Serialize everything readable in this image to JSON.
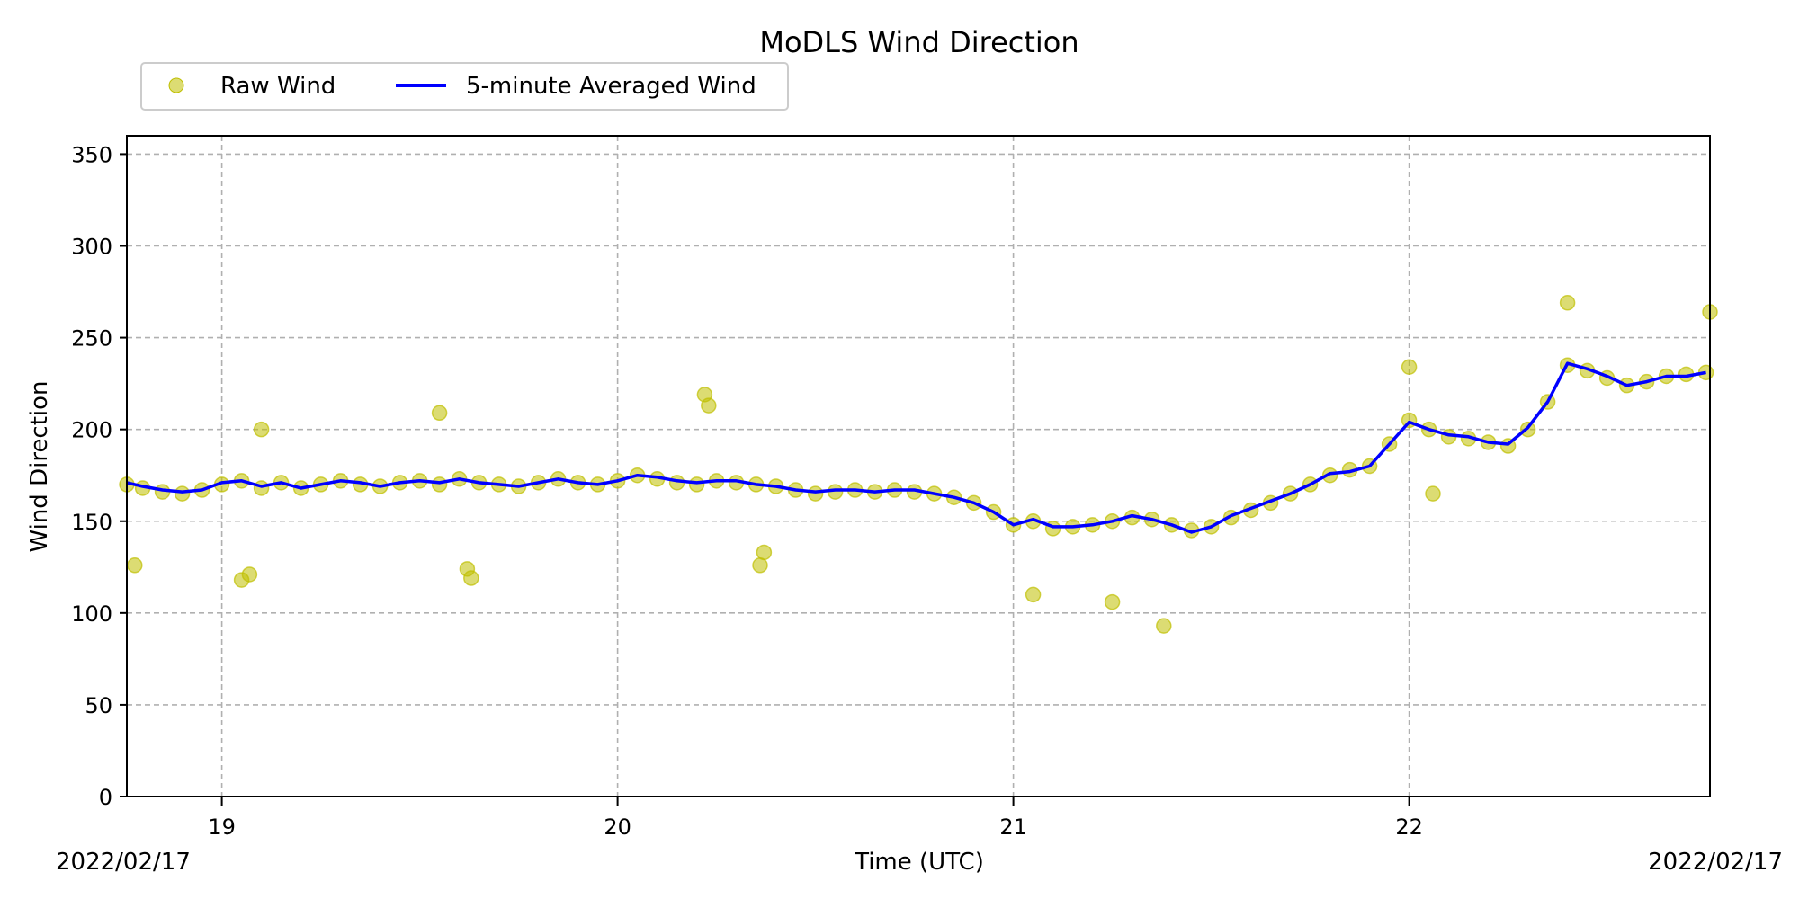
{
  "chart_data": {
    "type": "scatter",
    "title": "MoDLS Wind Direction",
    "xlabel": "Time (UTC)",
    "ylabel": "Wind Direction",
    "x_range_hours": [
      18.76,
      22.76
    ],
    "ylim": [
      0,
      360
    ],
    "y_ticks": [
      0,
      50,
      100,
      150,
      200,
      250,
      300,
      350
    ],
    "x_ticks": [
      {
        "value": 19,
        "label": "19"
      },
      {
        "value": 20,
        "label": "20"
      },
      {
        "value": 21,
        "label": "21"
      },
      {
        "value": 22,
        "label": "22"
      }
    ],
    "date_left": "2022/02/17",
    "date_right": "2022/02/17",
    "grid": true,
    "legend_position": "top-left",
    "colors": {
      "raw": "#bfbf00",
      "averaged": "#0000ff",
      "grid": "#b0b0b0"
    },
    "series": [
      {
        "name": "Raw Wind",
        "kind": "scatter",
        "x": [
          18.76,
          18.8,
          18.85,
          18.9,
          18.95,
          19.0,
          19.05,
          19.1,
          19.15,
          19.2,
          19.25,
          19.3,
          19.35,
          19.4,
          19.45,
          19.5,
          19.55,
          19.6,
          19.65,
          19.7,
          19.75,
          19.8,
          19.85,
          19.9,
          19.95,
          20.0,
          20.05,
          20.1,
          20.15,
          20.2,
          20.25,
          20.3,
          20.35,
          20.4,
          20.45,
          20.5,
          20.55,
          20.6,
          20.65,
          20.7,
          20.75,
          20.8,
          20.85,
          20.9,
          20.95,
          21.0,
          21.05,
          21.1,
          21.15,
          21.2,
          21.25,
          21.3,
          21.35,
          21.4,
          21.45,
          21.5,
          21.55,
          21.6,
          21.65,
          21.7,
          21.75,
          21.8,
          21.85,
          21.9,
          21.95,
          22.0,
          22.05,
          22.1,
          22.15,
          22.2,
          22.25,
          22.3,
          22.35,
          22.4,
          22.45,
          22.5,
          22.55,
          22.6,
          22.65,
          22.7,
          22.75,
          19.05,
          19.07,
          19.62,
          19.63,
          20.22,
          20.23,
          20.36,
          20.37,
          21.25,
          21.38,
          21.05,
          22.0,
          22.06,
          22.4,
          22.76,
          18.78,
          19.1,
          19.55
        ],
        "y": [
          170,
          168,
          166,
          165,
          167,
          170,
          172,
          168,
          171,
          168,
          170,
          172,
          170,
          169,
          171,
          172,
          170,
          173,
          171,
          170,
          169,
          171,
          173,
          171,
          170,
          172,
          175,
          173,
          171,
          170,
          172,
          171,
          170,
          169,
          167,
          165,
          166,
          167,
          166,
          167,
          166,
          165,
          163,
          160,
          155,
          148,
          150,
          146,
          147,
          148,
          150,
          152,
          151,
          148,
          145,
          147,
          152,
          156,
          160,
          165,
          170,
          175,
          178,
          180,
          192,
          205,
          200,
          196,
          195,
          193,
          191,
          200,
          215,
          235,
          232,
          228,
          224,
          226,
          229,
          230,
          231,
          118,
          121,
          124,
          119,
          219,
          213,
          126,
          133,
          106,
          93,
          110,
          234,
          165,
          269,
          264,
          126,
          200,
          209
        ]
      },
      {
        "name": "5-minute Averaged Wind",
        "kind": "line",
        "x": [
          18.76,
          18.8,
          18.85,
          18.9,
          18.95,
          19.0,
          19.05,
          19.1,
          19.15,
          19.2,
          19.25,
          19.3,
          19.35,
          19.4,
          19.45,
          19.5,
          19.55,
          19.6,
          19.65,
          19.7,
          19.75,
          19.8,
          19.85,
          19.9,
          19.95,
          20.0,
          20.05,
          20.1,
          20.15,
          20.2,
          20.25,
          20.3,
          20.35,
          20.4,
          20.45,
          20.5,
          20.55,
          20.6,
          20.65,
          20.7,
          20.75,
          20.8,
          20.85,
          20.9,
          20.95,
          21.0,
          21.05,
          21.1,
          21.15,
          21.2,
          21.25,
          21.3,
          21.35,
          21.4,
          21.45,
          21.5,
          21.55,
          21.6,
          21.65,
          21.7,
          21.75,
          21.8,
          21.85,
          21.9,
          21.95,
          22.0,
          22.05,
          22.1,
          22.15,
          22.2,
          22.25,
          22.3,
          22.35,
          22.4,
          22.45,
          22.5,
          22.55,
          22.6,
          22.65,
          22.7,
          22.75
        ],
        "y": [
          171,
          169,
          167,
          166,
          167,
          171,
          172,
          169,
          171,
          168,
          170,
          172,
          171,
          169,
          171,
          172,
          171,
          173,
          171,
          170,
          169,
          171,
          173,
          171,
          170,
          172,
          175,
          174,
          172,
          171,
          172,
          172,
          170,
          169,
          167,
          166,
          167,
          167,
          166,
          167,
          167,
          165,
          163,
          160,
          155,
          148,
          151,
          147,
          147,
          148,
          150,
          153,
          151,
          148,
          144,
          147,
          153,
          157,
          161,
          165,
          170,
          176,
          177,
          180,
          192,
          204,
          200,
          197,
          196,
          193,
          192,
          201,
          215,
          236,
          233,
          229,
          224,
          226,
          229,
          229,
          231
        ]
      }
    ]
  }
}
